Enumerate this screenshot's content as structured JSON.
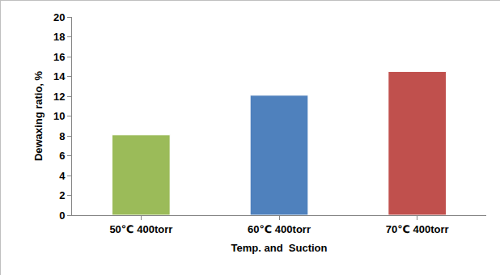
{
  "chart_data": {
    "type": "bar",
    "categories": [
      "50℃ 400torr",
      "60℃ 400torr",
      "70℃ 400torr"
    ],
    "values": [
      8.1,
      12.1,
      14.5
    ],
    "colors": [
      "#9bbb59",
      "#4f81bd",
      "#c0504d"
    ],
    "x_label": "Temp. and  Suction",
    "y_label": "Dewaxing ratio, %",
    "ylim": [
      0,
      20
    ],
    "yticks": [
      0,
      2,
      4,
      6,
      8,
      10,
      12,
      14,
      16,
      18,
      20
    ],
    "grid": false
  }
}
